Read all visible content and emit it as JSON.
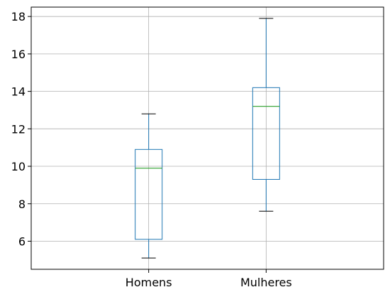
{
  "chart_data": {
    "type": "box",
    "title": "",
    "xlabel": "",
    "ylabel": "",
    "categories": [
      "Homens",
      "Mulheres"
    ],
    "boxes": [
      {
        "category": "Homens",
        "whisker_low": 5.1,
        "q1": 6.1,
        "median": 9.9,
        "q3": 10.9,
        "whisker_high": 12.8
      },
      {
        "category": "Mulheres",
        "whisker_low": 7.6,
        "q1": 9.3,
        "median": 13.2,
        "q3": 14.2,
        "whisker_high": 17.9
      }
    ],
    "ylim": [
      4.5,
      18.5
    ],
    "yticks": [
      6,
      8,
      10,
      12,
      14,
      16,
      18
    ],
    "grid": true,
    "colors": {
      "box": "#1f77b4",
      "median": "#2ca02c",
      "whisker_cap": "#000000",
      "grid": "#b0b0b0",
      "axis": "#000000"
    }
  }
}
